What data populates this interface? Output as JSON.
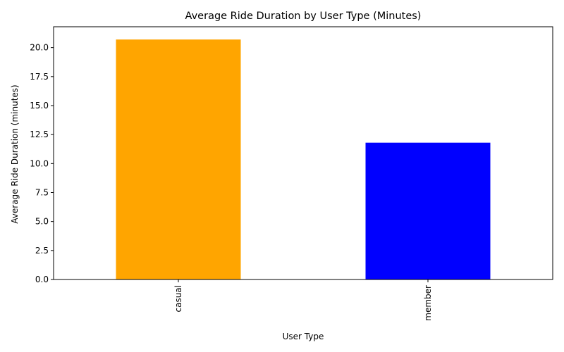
{
  "chart_data": {
    "type": "bar",
    "title": "Average Ride Duration by User Type (Minutes)",
    "xlabel": "User Type",
    "ylabel": "Average Ride Duration (minutes)",
    "categories": [
      "casual",
      "member"
    ],
    "values": [
      20.7,
      11.8
    ],
    "colors": [
      "#ffa500",
      "#0000ff"
    ],
    "ylim": [
      0,
      21.8
    ],
    "yticks": [
      0.0,
      2.5,
      5.0,
      7.5,
      10.0,
      12.5,
      15.0,
      17.5,
      20.0
    ],
    "ytick_labels": [
      "0.0",
      "2.5",
      "5.0",
      "7.5",
      "10.0",
      "12.5",
      "15.0",
      "17.5",
      "20.0"
    ],
    "grid": false,
    "legend": "none"
  }
}
